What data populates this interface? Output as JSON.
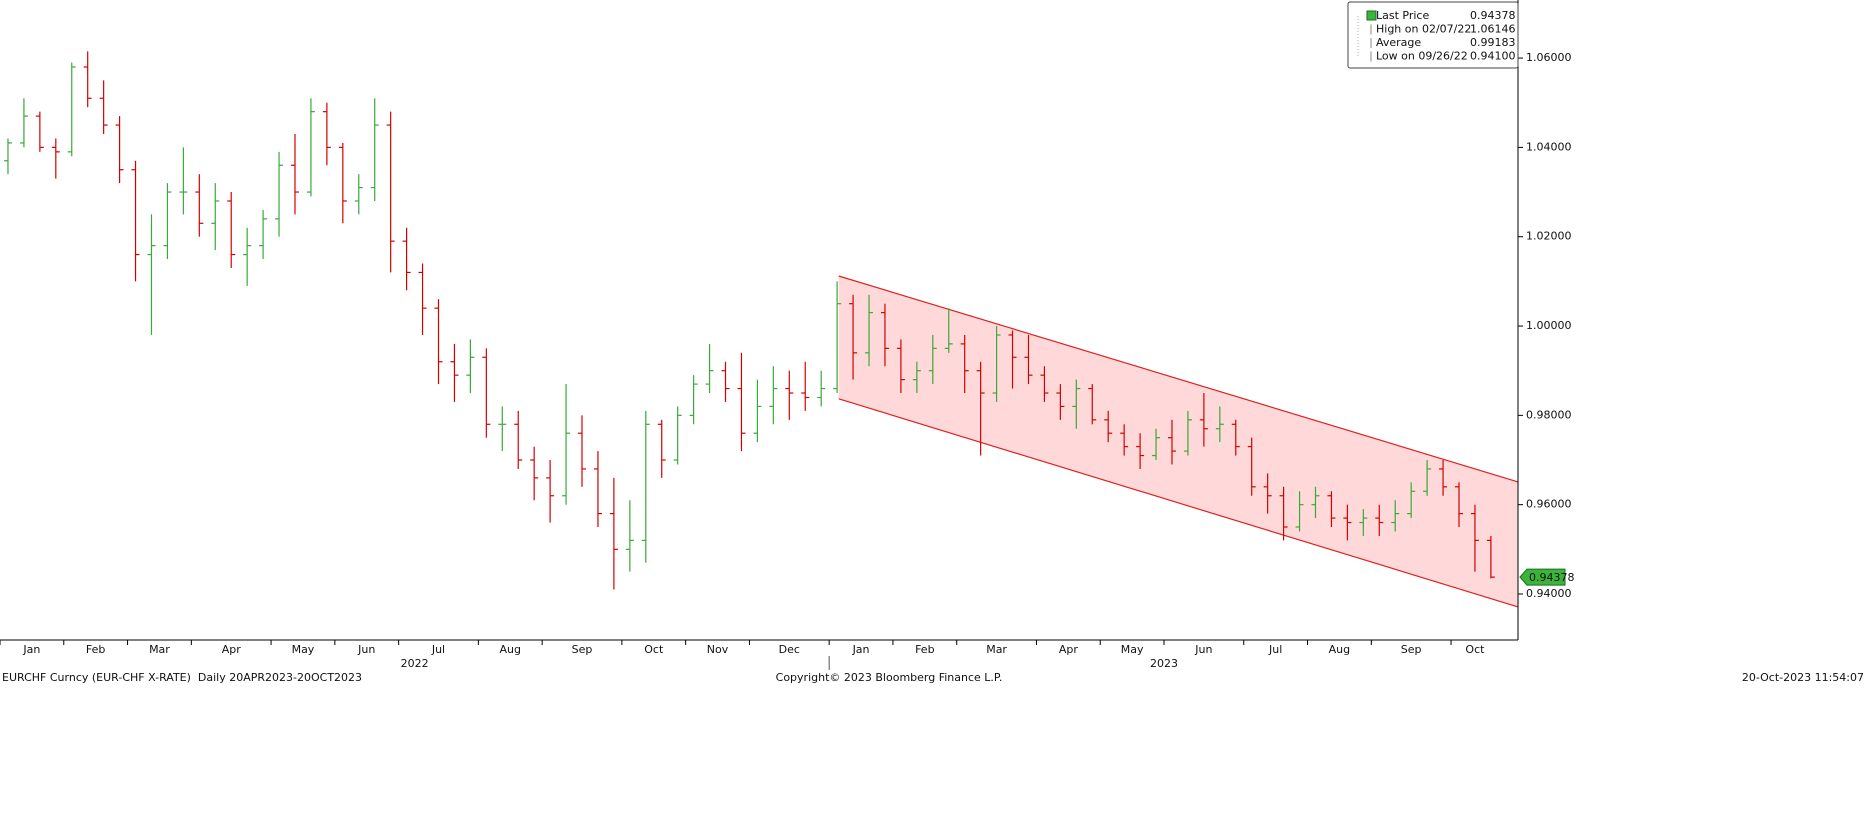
{
  "chart_data": {
    "type": "ohlc",
    "categories": [
      "Jan",
      null,
      null,
      null,
      "Feb",
      null,
      null,
      null,
      "Mar",
      null,
      null,
      null,
      "Apr",
      null,
      null,
      null,
      null,
      "May",
      null,
      null,
      null,
      "Jun",
      null,
      null,
      null,
      "Jul",
      null,
      null,
      null,
      null,
      "Aug",
      null,
      null,
      null,
      "Sep",
      null,
      null,
      null,
      null,
      "Oct",
      null,
      null,
      null,
      "Nov",
      null,
      null,
      null,
      "Dec",
      null,
      null,
      null,
      null,
      "Jan",
      null,
      null,
      null,
      "Feb",
      null,
      null,
      null,
      "Mar",
      null,
      null,
      null,
      null,
      "Apr",
      null,
      null,
      null,
      "May",
      null,
      null,
      null,
      "Jun",
      null,
      null,
      null,
      null,
      "Jul",
      null,
      null,
      null,
      "Aug",
      null,
      null,
      null,
      "Sep",
      null,
      null,
      null,
      null,
      "Oct",
      null,
      null
    ],
    "years": [
      "2022",
      "2023"
    ],
    "open": [
      1.037,
      1.041,
      1.047,
      1.04,
      1.039,
      1.058,
      1.051,
      1.045,
      1.035,
      1.016,
      1.018,
      1.03,
      1.03,
      1.023,
      1.028,
      1.016,
      1.018,
      1.024,
      1.036,
      1.03,
      1.048,
      1.04,
      1.028,
      1.031,
      1.045,
      1.019,
      1.012,
      1.004,
      0.992,
      0.989,
      0.993,
      0.978,
      0.978,
      0.97,
      0.966,
      0.962,
      0.976,
      0.968,
      0.958,
      0.95,
      0.952,
      0.978,
      0.97,
      0.98,
      0.987,
      0.99,
      0.986,
      0.976,
      0.982,
      0.986,
      0.985,
      0.984,
      0.986,
      1.005,
      0.994,
      1.003,
      0.995,
      0.988,
      0.99,
      0.995,
      0.996,
      0.99,
      0.985,
      0.998,
      0.993,
      0.989,
      0.985,
      0.982,
      0.986,
      0.979,
      0.976,
      0.973,
      0.971,
      0.975,
      0.972,
      0.979,
      0.977,
      0.978,
      0.973,
      0.964,
      0.962,
      0.955,
      0.96,
      0.962,
      0.957,
      0.956,
      0.957,
      0.956,
      0.958,
      0.963,
      0.968,
      0.964,
      0.958,
      0.952
    ],
    "high": [
      1.042,
      1.051,
      1.048,
      1.042,
      1.059,
      1.0615,
      1.055,
      1.047,
      1.037,
      1.025,
      1.032,
      1.04,
      1.034,
      1.032,
      1.03,
      1.022,
      1.026,
      1.039,
      1.043,
      1.051,
      1.05,
      1.041,
      1.034,
      1.051,
      1.048,
      1.022,
      1.014,
      1.006,
      0.996,
      0.997,
      0.995,
      0.982,
      0.981,
      0.973,
      0.97,
      0.987,
      0.98,
      0.972,
      0.966,
      0.961,
      0.981,
      0.979,
      0.982,
      0.989,
      0.996,
      0.992,
      0.994,
      0.988,
      0.991,
      0.99,
      0.992,
      0.99,
      1.01,
      1.007,
      1.007,
      1.005,
      0.997,
      0.992,
      0.998,
      1.004,
      0.998,
      0.992,
      1.0,
      0.999,
      0.998,
      0.991,
      0.987,
      0.988,
      0.987,
      0.981,
      0.978,
      0.976,
      0.977,
      0.979,
      0.981,
      0.985,
      0.982,
      0.979,
      0.975,
      0.967,
      0.964,
      0.963,
      0.964,
      0.963,
      0.96,
      0.959,
      0.96,
      0.961,
      0.965,
      0.97,
      0.97,
      0.965,
      0.96,
      0.953
    ],
    "low": [
      1.034,
      1.04,
      1.039,
      1.033,
      1.038,
      1.049,
      1.043,
      1.032,
      1.01,
      0.998,
      1.015,
      1.025,
      1.02,
      1.017,
      1.013,
      1.009,
      1.015,
      1.02,
      1.025,
      1.029,
      1.036,
      1.023,
      1.025,
      1.028,
      1.012,
      1.008,
      0.998,
      0.987,
      0.983,
      0.985,
      0.975,
      0.972,
      0.968,
      0.961,
      0.956,
      0.96,
      0.964,
      0.955,
      0.941,
      0.945,
      0.947,
      0.966,
      0.969,
      0.978,
      0.985,
      0.983,
      0.972,
      0.974,
      0.978,
      0.979,
      0.981,
      0.982,
      0.985,
      0.988,
      0.991,
      0.991,
      0.985,
      0.985,
      0.987,
      0.994,
      0.985,
      0.971,
      0.983,
      0.986,
      0.987,
      0.983,
      0.979,
      0.977,
      0.978,
      0.974,
      0.971,
      0.968,
      0.97,
      0.969,
      0.971,
      0.973,
      0.974,
      0.971,
      0.962,
      0.958,
      0.952,
      0.954,
      0.957,
      0.955,
      0.952,
      0.953,
      0.953,
      0.954,
      0.957,
      0.962,
      0.962,
      0.955,
      0.945,
      0.9435
    ],
    "close": [
      1.041,
      1.047,
      1.04,
      1.039,
      1.058,
      1.051,
      1.045,
      1.035,
      1.016,
      1.018,
      1.03,
      1.03,
      1.023,
      1.028,
      1.016,
      1.018,
      1.024,
      1.036,
      1.03,
      1.048,
      1.04,
      1.028,
      1.031,
      1.045,
      1.019,
      1.012,
      1.004,
      0.992,
      0.989,
      0.993,
      0.978,
      0.978,
      0.97,
      0.966,
      0.962,
      0.976,
      0.968,
      0.958,
      0.95,
      0.952,
      0.978,
      0.97,
      0.98,
      0.987,
      0.99,
      0.986,
      0.976,
      0.982,
      0.986,
      0.985,
      0.984,
      0.986,
      1.005,
      0.994,
      1.003,
      0.995,
      0.988,
      0.99,
      0.995,
      0.996,
      0.99,
      0.985,
      0.998,
      0.993,
      0.989,
      0.985,
      0.982,
      0.986,
      0.979,
      0.976,
      0.973,
      0.971,
      0.975,
      0.972,
      0.979,
      0.977,
      0.978,
      0.973,
      0.964,
      0.962,
      0.955,
      0.96,
      0.962,
      0.957,
      0.956,
      0.957,
      0.956,
      0.958,
      0.963,
      0.968,
      0.964,
      0.958,
      0.952,
      0.94378
    ],
    "up_color": "#3aa83a",
    "down_color": "#d40000",
    "xlim": [
      -0.5,
      94.7
    ],
    "ylim": [
      0.9297,
      1.073
    ],
    "yticks": [
      {
        "value": 0.94,
        "label": "0.94000"
      },
      {
        "value": 0.96,
        "label": "0.96000"
      },
      {
        "value": 0.98,
        "label": "0.98000"
      },
      {
        "value": 1.0,
        "label": "1.00000"
      },
      {
        "value": 1.02,
        "label": "1.02000"
      },
      {
        "value": 1.04,
        "label": "1.04000"
      },
      {
        "value": 1.06,
        "label": "1.06000"
      }
    ],
    "channel": {
      "x": [
        52.1,
        94.7
      ],
      "upper": [
        1.0112,
        0.9651
      ],
      "lower": [
        0.9837,
        0.9371
      ],
      "color": "#e02020",
      "fill": "#ffd9d9"
    },
    "legend": [
      {
        "name": "Last Price",
        "value": 0.94378
      },
      {
        "name": "High on 02/07/22",
        "value": 1.06146
      },
      {
        "name": "Average",
        "value": 0.99183
      },
      {
        "name": "Low on 09/26/22",
        "value": 0.941,
        "value_label": "0.94100"
      }
    ],
    "footer": {
      "left": "EURCHF Curncy (EUR-CHF X-RATE)  Daily 20APR2023-20OCT2023",
      "center": "Copyright© 2023 Bloomberg Finance L.P.",
      "right": "20-Oct-2023 11:54:07"
    }
  }
}
